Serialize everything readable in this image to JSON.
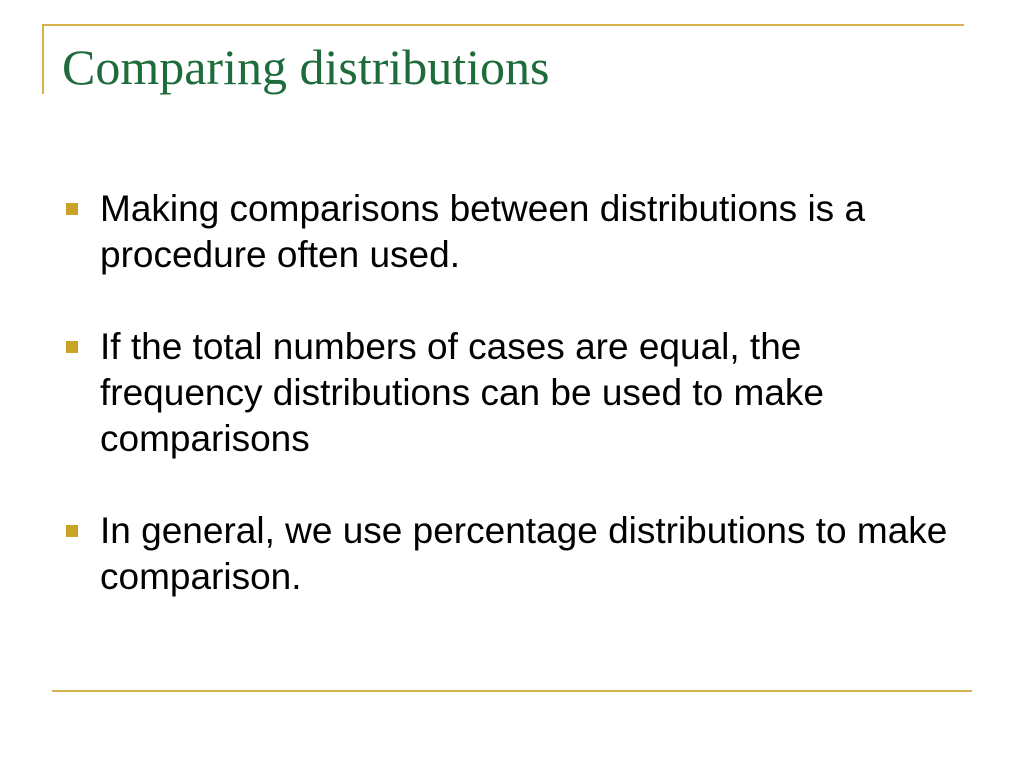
{
  "slide": {
    "title": "Comparing distributions",
    "bullets": [
      "Making comparisons between distributions is a procedure often used.",
      "If the total numbers of cases are equal, the frequency distributions can be used to make comparisons",
      "In general, we use percentage distributions to make comparison."
    ]
  },
  "colors": {
    "title": "#1e6b3c",
    "accent_lines": "#d4b44a",
    "bullet_marker": "#c9a227",
    "text": "#000000",
    "background": "#ffffff"
  },
  "icons": {
    "bullet": "square-bullet-icon"
  }
}
